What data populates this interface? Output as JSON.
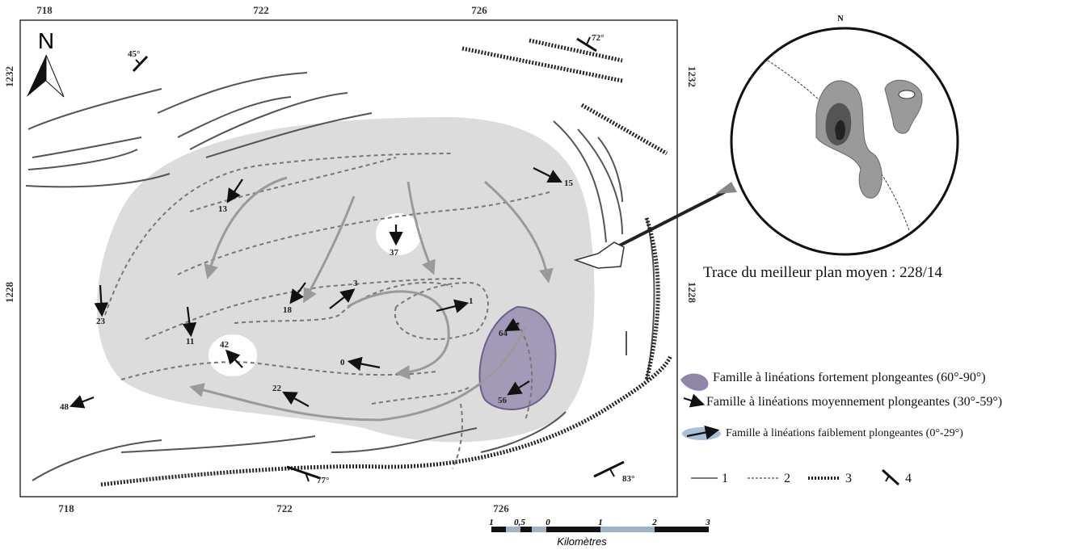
{
  "map": {
    "frame": {
      "top_ticks": [
        "718",
        "722",
        "726"
      ],
      "bottom_ticks": [
        "718",
        "722",
        "726"
      ],
      "left_ticks": [
        "1232",
        "1228"
      ],
      "right_ticks": [
        "1232",
        "1228"
      ]
    },
    "north": "N",
    "dips": [
      "45°",
      "72°",
      "77°",
      "83°"
    ],
    "lineations": [
      "15",
      "13",
      "37",
      "3",
      "1",
      "18",
      "23",
      "11",
      "42",
      "0",
      "64",
      "22",
      "56",
      "48"
    ]
  },
  "stereonet": {
    "north": "N",
    "caption": "Trace du meilleur plan moyen :  228/14"
  },
  "legend": {
    "families": [
      "Famille à linéations fortement plongeantes (60°-90°)",
      "Famille à linéations moyennement plongeantes (30°-59°)",
      "Famille à linéations faiblement plongeantes (0°-29°)"
    ],
    "symbols": [
      "1",
      "2",
      "3",
      "4"
    ]
  },
  "scale": {
    "labels": [
      "1",
      "0,5",
      "0",
      "1",
      "2",
      "3"
    ],
    "unit": "Kilomètres"
  }
}
